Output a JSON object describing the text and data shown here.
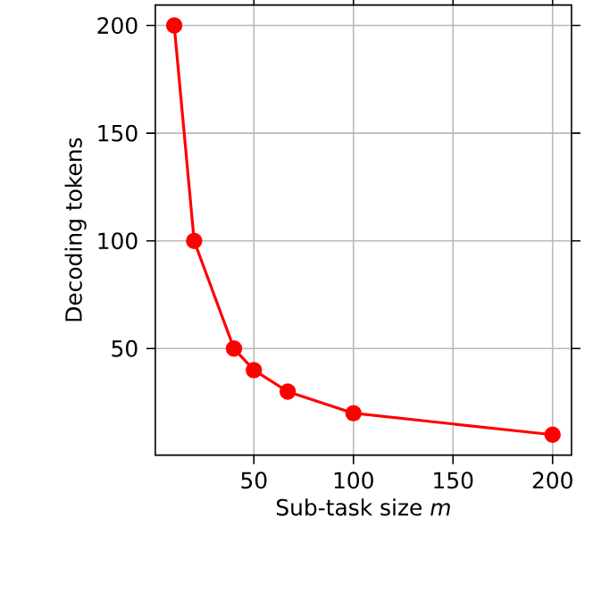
{
  "chart_data": {
    "type": "line",
    "xlabel": "Sub-task size *m*",
    "ylabel": "Decoding tokens",
    "x": [
      10,
      20,
      40,
      50,
      67,
      100,
      200
    ],
    "series": [
      {
        "color": "#ff0000",
        "values": [
          200,
          100,
          50,
          40,
          30,
          20,
          10
        ]
      }
    ],
    "xlim": [
      0.5,
      209.5
    ],
    "ylim": [
      0.5,
      209.5
    ],
    "xticks": [
      50,
      100,
      150,
      200
    ],
    "yticks": [
      50,
      100,
      150,
      200
    ],
    "grid": true,
    "marker": "circle",
    "line_style": "solid"
  }
}
